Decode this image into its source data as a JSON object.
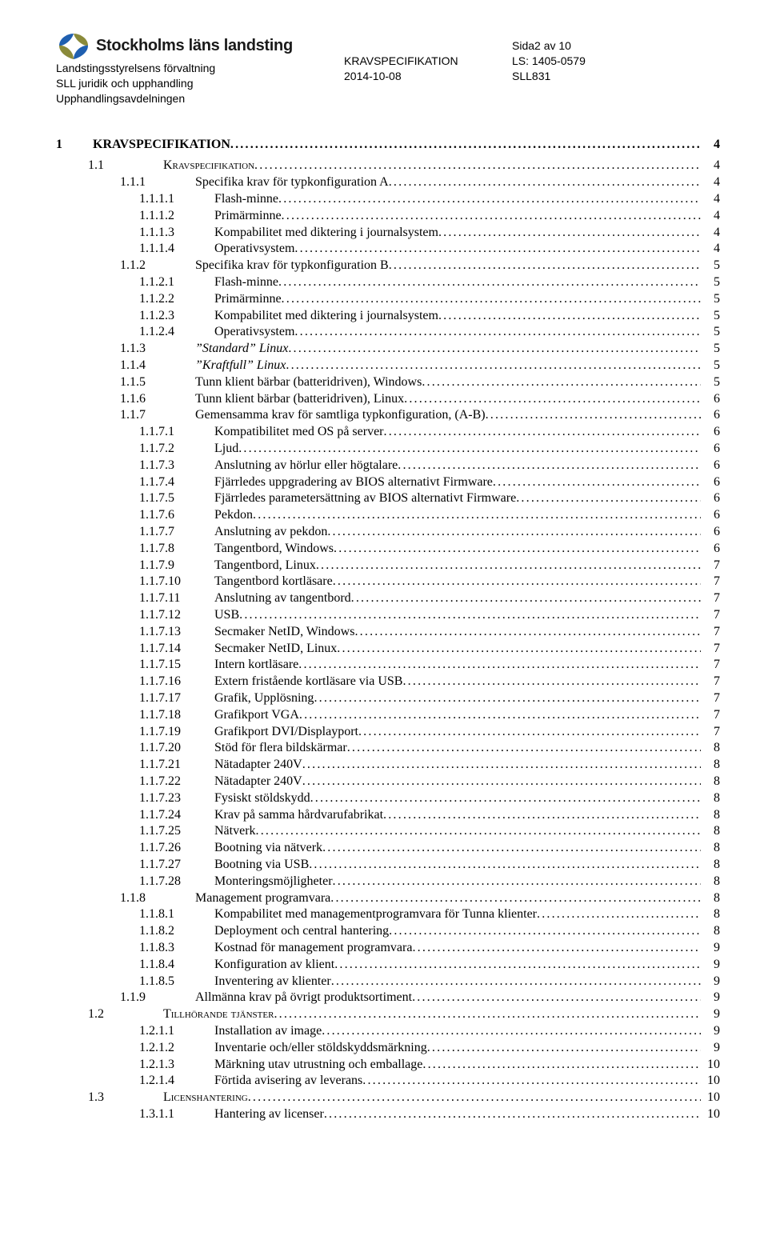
{
  "header": {
    "org": "Stockholms läns landsting",
    "dept_line1": "Landstingsstyrelsens förvaltning",
    "dept_line2": "SLL juridik och upphandling",
    "dept_line3": "Upphandlingsavdelningen",
    "mid_title": "KRAVSPECIFIKATION",
    "mid_date": "2014-10-08",
    "right_page": "Sida2 av 10",
    "right_ref1": "LS: 1405-0579",
    "right_ref2": "SLL831",
    "logo_color_blue": "#1f5fb0",
    "logo_color_olive": "#8a8a3a",
    "text_color": "#000000"
  },
  "toc_top_num": "1",
  "toc_top_title": "KRAVSPECIFIKATION",
  "toc_top_page": "4",
  "entries": [
    {
      "lvl": 1,
      "num": "1.1",
      "title": "Kravspecifikation",
      "page": "4",
      "sc": true
    },
    {
      "lvl": 2,
      "num": "1.1.1",
      "title": "Specifika krav för typkonfiguration A",
      "page": "4"
    },
    {
      "lvl": 3,
      "num": "1.1.1.1",
      "title": "Flash-minne",
      "page": "4"
    },
    {
      "lvl": 3,
      "num": "1.1.1.2",
      "title": "Primärminne",
      "page": "4"
    },
    {
      "lvl": 3,
      "num": "1.1.1.3",
      "title": "Kompabilitet med diktering i journalsystem",
      "page": "4"
    },
    {
      "lvl": 3,
      "num": "1.1.1.4",
      "title": "Operativsystem",
      "page": "4"
    },
    {
      "lvl": 2,
      "num": "1.1.2",
      "title": "Specifika krav för typkonfiguration B",
      "page": "5"
    },
    {
      "lvl": 3,
      "num": "1.1.2.1",
      "title": "Flash-minne",
      "page": "5"
    },
    {
      "lvl": 3,
      "num": "1.1.2.2",
      "title": "Primärminne",
      "page": "5"
    },
    {
      "lvl": 3,
      "num": "1.1.2.3",
      "title": "Kompabilitet med diktering i journalsystem",
      "page": "5"
    },
    {
      "lvl": 3,
      "num": "1.1.2.4",
      "title": "Operativsystem",
      "page": "5"
    },
    {
      "lvl": 2,
      "num": "1.1.3",
      "title": "”Standard” Linux",
      "page": "5",
      "it": true
    },
    {
      "lvl": 2,
      "num": "1.1.4",
      "title": "”Kraftfull” Linux",
      "page": "5",
      "it": true
    },
    {
      "lvl": 2,
      "num": "1.1.5",
      "title": "Tunn klient bärbar (batteridriven), Windows",
      "page": "5"
    },
    {
      "lvl": 2,
      "num": "1.1.6",
      "title": "Tunn klient bärbar (batteridriven), Linux",
      "page": "6"
    },
    {
      "lvl": 2,
      "num": "1.1.7",
      "title": "Gemensamma krav för samtliga typkonfiguration, (A-B)",
      "page": "6"
    },
    {
      "lvl": 3,
      "num": "1.1.7.1",
      "title": "Kompatibilitet med OS på server",
      "page": "6"
    },
    {
      "lvl": 3,
      "num": "1.1.7.2",
      "title": "Ljud",
      "page": "6"
    },
    {
      "lvl": 3,
      "num": "1.1.7.3",
      "title": "Anslutning av hörlur eller högtalare",
      "page": "6"
    },
    {
      "lvl": 3,
      "num": "1.1.7.4",
      "title": "Fjärrledes uppgradering av BIOS alternativt Firmware",
      "page": "6"
    },
    {
      "lvl": 3,
      "num": "1.1.7.5",
      "title": "Fjärrledes parametersättning av BIOS alternativt Firmware",
      "page": "6"
    },
    {
      "lvl": 3,
      "num": "1.1.7.6",
      "title": "Pekdon",
      "page": "6"
    },
    {
      "lvl": 3,
      "num": "1.1.7.7",
      "title": "Anslutning av pekdon",
      "page": "6"
    },
    {
      "lvl": 3,
      "num": "1.1.7.8",
      "title": "Tangentbord, Windows",
      "page": "6"
    },
    {
      "lvl": 3,
      "num": "1.1.7.9",
      "title": "Tangentbord, Linux",
      "page": "7"
    },
    {
      "lvl": 3,
      "num": "1.1.7.10",
      "title": "Tangentbord kortläsare",
      "page": "7"
    },
    {
      "lvl": 3,
      "num": "1.1.7.11",
      "title": "Anslutning av tangentbord",
      "page": "7"
    },
    {
      "lvl": 3,
      "num": "1.1.7.12",
      "title": "USB",
      "page": "7"
    },
    {
      "lvl": 3,
      "num": "1.1.7.13",
      "title": "Secmaker NetID, Windows",
      "page": "7"
    },
    {
      "lvl": 3,
      "num": "1.1.7.14",
      "title": "Secmaker NetID, Linux",
      "page": "7"
    },
    {
      "lvl": 3,
      "num": "1.1.7.15",
      "title": "Intern kortläsare",
      "page": "7"
    },
    {
      "lvl": 3,
      "num": "1.1.7.16",
      "title": "Extern fristående kortläsare via USB",
      "page": "7"
    },
    {
      "lvl": 3,
      "num": "1.1.7.17",
      "title": "Grafik, Upplösning",
      "page": "7"
    },
    {
      "lvl": 3,
      "num": "1.1.7.18",
      "title": "Grafikport VGA",
      "page": "7"
    },
    {
      "lvl": 3,
      "num": "1.1.7.19",
      "title": "Grafikport DVI/Displayport",
      "page": "7"
    },
    {
      "lvl": 3,
      "num": "1.1.7.20",
      "title": "Stöd för flera bildskärmar",
      "page": "8"
    },
    {
      "lvl": 3,
      "num": "1.1.7.21",
      "title": "Nätadapter 240V",
      "page": "8"
    },
    {
      "lvl": 3,
      "num": "1.1.7.22",
      "title": "Nätadapter 240V",
      "page": "8"
    },
    {
      "lvl": 3,
      "num": "1.1.7.23",
      "title": "Fysiskt stöldskydd",
      "page": "8"
    },
    {
      "lvl": 3,
      "num": "1.1.7.24",
      "title": "Krav på samma hårdvarufabrikat",
      "page": "8"
    },
    {
      "lvl": 3,
      "num": "1.1.7.25",
      "title": "Nätverk",
      "page": "8"
    },
    {
      "lvl": 3,
      "num": "1.1.7.26",
      "title": "Bootning via nätverk",
      "page": "8"
    },
    {
      "lvl": 3,
      "num": "1.1.7.27",
      "title": "Bootning via USB",
      "page": "8"
    },
    {
      "lvl": 3,
      "num": "1.1.7.28",
      "title": "Monteringsmöjligheter",
      "page": "8"
    },
    {
      "lvl": 2,
      "num": "1.1.8",
      "title": "Management programvara",
      "page": "8"
    },
    {
      "lvl": 3,
      "num": "1.1.8.1",
      "title": "Kompabilitet med managementprogramvara för Tunna klienter",
      "page": "8"
    },
    {
      "lvl": 3,
      "num": "1.1.8.2",
      "title": "Deployment och central hantering",
      "page": "8"
    },
    {
      "lvl": 3,
      "num": "1.1.8.3",
      "title": "Kostnad för management programvara",
      "page": "9"
    },
    {
      "lvl": 3,
      "num": "1.1.8.4",
      "title": "Konfiguration av klient",
      "page": "9"
    },
    {
      "lvl": 3,
      "num": "1.1.8.5",
      "title": "Inventering av klienter",
      "page": "9"
    },
    {
      "lvl": 2,
      "num": "1.1.9",
      "title": "Allmänna krav på övrigt produktsortiment",
      "page": "9"
    },
    {
      "lvl": 1,
      "num": "1.2",
      "title": "Tillhörande tjänster",
      "page": "9",
      "sc": true
    },
    {
      "lvl": 3,
      "num": "1.2.1.1",
      "title": "Installation av image",
      "page": "9"
    },
    {
      "lvl": 3,
      "num": "1.2.1.2",
      "title": "Inventarie och/eller stöldskyddsmärkning",
      "page": "9"
    },
    {
      "lvl": 3,
      "num": "1.2.1.3",
      "title": "Märkning utav utrustning och emballage",
      "page": "10"
    },
    {
      "lvl": 3,
      "num": "1.2.1.4",
      "title": "Förtida avisering av leverans",
      "page": "10"
    },
    {
      "lvl": 1,
      "num": "1.3",
      "title": "Licenshantering",
      "page": "10",
      "sc": true
    },
    {
      "lvl": 3,
      "num": "1.3.1.1",
      "title": "Hantering av licenser",
      "page": "10"
    }
  ]
}
